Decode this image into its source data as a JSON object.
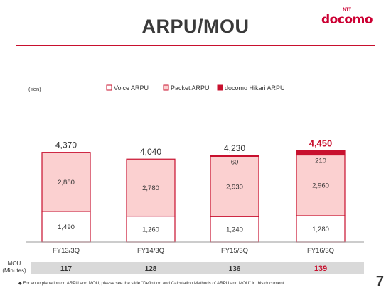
{
  "header": {
    "title": "ARPU/MOU",
    "logo_ntt": "NTT",
    "logo_text": "docomo"
  },
  "colors": {
    "accent": "#c8102e",
    "voice_fill": "#ffffff",
    "packet_fill": "#fbd0d0",
    "hikari_fill": "#c8102e",
    "mou_band": "#d9d9d9"
  },
  "chart_data": {
    "type": "bar",
    "stacked": true,
    "unit_label": "(Yen)",
    "categories": [
      "FY13/3Q",
      "FY14/3Q",
      "FY15/3Q",
      "FY16/3Q"
    ],
    "series": [
      {
        "name": "Voice ARPU",
        "values": [
          1490,
          1260,
          1240,
          1280
        ],
        "value_labels": [
          "1,490",
          "1,260",
          "1,240",
          "1,280"
        ]
      },
      {
        "name": "Packet ARPU",
        "values": [
          2880,
          2780,
          2930,
          2960
        ],
        "value_labels": [
          "2,880",
          "2,780",
          "2,930",
          "2,960"
        ]
      },
      {
        "name": "docomo Hikari ARPU",
        "values": [
          0,
          0,
          60,
          210
        ],
        "value_labels": [
          "",
          "",
          "60",
          "210"
        ]
      }
    ],
    "totals": [
      4370,
      4040,
      4230,
      4450
    ],
    "total_labels": [
      "4,370",
      "4,040",
      "4,230",
      "4,450"
    ],
    "highlight_total_index": 3,
    "legend_position": "top-center",
    "grid": false
  },
  "mou": {
    "label_line1": "MOU",
    "label_line2": "(Minutes)",
    "values": [
      "117",
      "128",
      "136",
      "139"
    ],
    "highlight_index": 3
  },
  "footnote": "◆ For an explanation on ARPU and MOU, please see the slide \"Definition and Calculation Methods of ARPU and MOU\" in this document",
  "page_number": "7"
}
